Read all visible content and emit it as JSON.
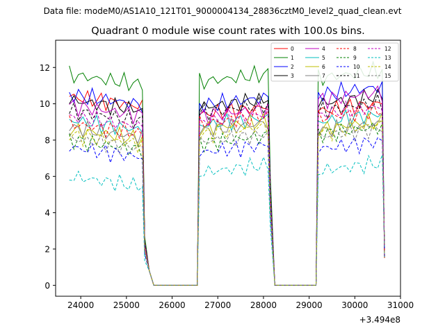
{
  "header": {
    "file_text": "Data file: modeM0/AS1A10_121T01_9000004134_28836cztM0_level2_quad_clean.evt"
  },
  "chart_data": {
    "type": "line",
    "title": "Quadrant 0 module wise count rates with 100.0s bins.",
    "xlabel": "",
    "ylabel": "",
    "x_offset_label": "+3.494e8",
    "xlim": [
      23450,
      31000
    ],
    "ylim": [
      -0.6,
      13.5
    ],
    "x_ticks": [
      24000,
      25000,
      26000,
      27000,
      28000,
      29000,
      30000,
      31000
    ],
    "x_tick_labels": [
      "24000",
      "25000",
      "26000",
      "27000",
      "28000",
      "29000",
      "30000",
      "31000"
    ],
    "y_ticks": [
      0,
      2,
      4,
      6,
      8,
      10,
      12
    ],
    "y_tick_labels": [
      "0",
      "2",
      "4",
      "6",
      "8",
      "10",
      "12"
    ],
    "grid": false,
    "legend_position": "top-right",
    "legend_columns": 4,
    "segments": [
      {
        "x_start": 23750,
        "x_end": 25350
      },
      {
        "x_start": 26600,
        "x_end": 28100
      },
      {
        "x_start": 29200,
        "x_end": 30550
      }
    ],
    "gap_x": [
      25400,
      25500,
      25600,
      26550,
      28150,
      28250,
      29150,
      30650
    ],
    "series": [
      {
        "name": "0",
        "color": "#ff0000",
        "dash": "solid",
        "levels": [
          10.4,
          9.4,
          9.6
        ]
      },
      {
        "name": "1",
        "color": "#008000",
        "dash": "solid",
        "levels": [
          11.6,
          11.2,
          11.4
        ]
      },
      {
        "name": "2",
        "color": "#0000ff",
        "dash": "solid",
        "levels": [
          10.5,
          9.9,
          10.5
        ]
      },
      {
        "name": "3",
        "color": "#000000",
        "dash": "solid",
        "levels": [
          10.2,
          9.8,
          10.0
        ]
      },
      {
        "name": "4",
        "color": "#bf00bf",
        "dash": "solid",
        "levels": [
          9.9,
          9.3,
          10.2
        ]
      },
      {
        "name": "5",
        "color": "#00bfbf",
        "dash": "solid",
        "levels": [
          9.1,
          8.8,
          9.0
        ]
      },
      {
        "name": "6",
        "color": "#bfbf00",
        "dash": "solid",
        "levels": [
          8.6,
          8.6,
          8.6
        ]
      },
      {
        "name": "7",
        "color": "#808080",
        "dash": "solid",
        "levels": [
          8.7,
          8.5,
          8.5
        ]
      },
      {
        "name": "8",
        "color": "#ff0000",
        "dash": "dashed",
        "levels": [
          8.9,
          8.9,
          9.2
        ]
      },
      {
        "name": "9",
        "color": "#008000",
        "dash": "dashed",
        "levels": [
          8.0,
          7.8,
          8.3
        ]
      },
      {
        "name": "10",
        "color": "#0000ff",
        "dash": "dashed",
        "levels": [
          7.6,
          7.3,
          7.5
        ]
      },
      {
        "name": "11",
        "color": "#000000",
        "dash": "dashed",
        "levels": [
          9.6,
          9.5,
          9.6
        ]
      },
      {
        "name": "12",
        "color": "#bf00bf",
        "dash": "dashed",
        "levels": [
          9.3,
          9.0,
          9.4
        ]
      },
      {
        "name": "13",
        "color": "#00bfbf",
        "dash": "dashed",
        "levels": [
          6.0,
          6.2,
          6.3
        ]
      },
      {
        "name": "14",
        "color": "#bfbf00",
        "dash": "dashed",
        "levels": [
          8.3,
          8.3,
          8.4
        ]
      },
      {
        "name": "15",
        "color": "#808080",
        "dash": "dashed",
        "levels": [
          8.1,
          7.9,
          8.2
        ]
      }
    ]
  }
}
